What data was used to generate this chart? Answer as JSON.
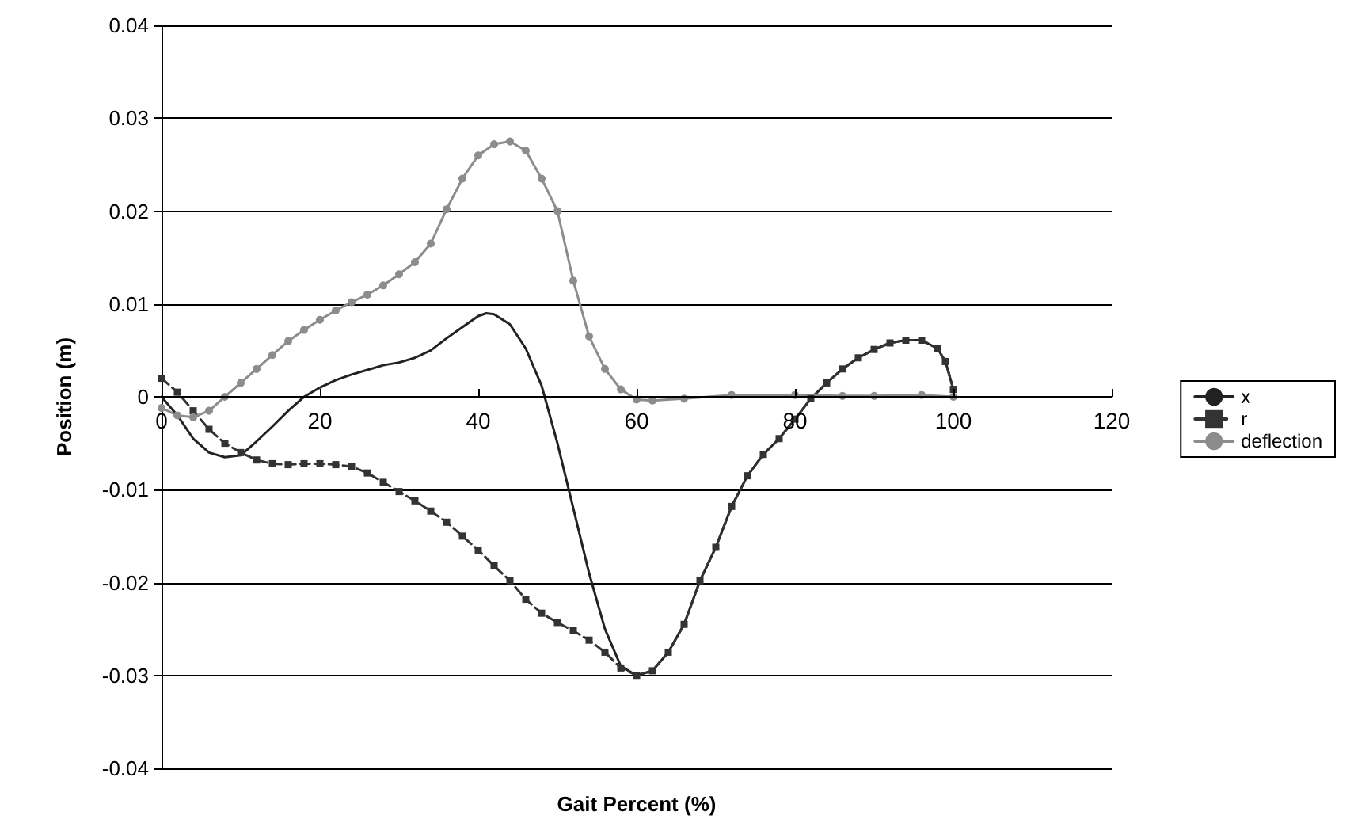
{
  "chart_data": {
    "type": "line",
    "xlabel": "Gait Percent (%)",
    "ylabel": "Position (m)",
    "xlim": [
      0,
      120
    ],
    "xticks": [
      0,
      20,
      40,
      60,
      80,
      100,
      120
    ],
    "ylim": [
      -0.04,
      0.04
    ],
    "yticks": [
      -0.04,
      -0.03,
      -0.02,
      -0.01,
      0,
      0.01,
      0.02,
      0.03,
      0.04
    ],
    "grid": "y",
    "legend": "right",
    "series": [
      {
        "name": "x",
        "color": "#222222",
        "marker": "none",
        "line_style": "solid",
        "x": [
          0,
          2,
          4,
          6,
          8,
          10,
          12,
          14,
          16,
          18,
          20,
          22,
          24,
          26,
          28,
          30,
          32,
          34,
          36,
          38,
          40,
          41,
          42,
          44,
          46,
          48,
          50,
          52,
          54,
          56,
          58,
          60,
          62,
          64,
          66,
          68,
          70,
          72,
          74,
          76,
          78,
          80,
          82,
          84,
          86,
          88,
          90,
          92,
          94,
          96,
          98,
          99,
          100
        ],
        "values": [
          0,
          -0.002,
          -0.0045,
          -0.006,
          -0.0065,
          -0.0063,
          -0.0048,
          -0.0032,
          -0.0015,
          0,
          0.001,
          0.0018,
          0.0024,
          0.0029,
          0.0034,
          0.0037,
          0.0042,
          0.005,
          0.0063,
          0.0075,
          0.0087,
          0.009,
          0.0089,
          0.0078,
          0.0052,
          0.0012,
          -0.005,
          -0.012,
          -0.019,
          -0.025,
          -0.029,
          -0.03,
          -0.0295,
          -0.0275,
          -0.0245,
          -0.0198,
          -0.0162,
          -0.0118,
          -0.0085,
          -0.0062,
          -0.0045,
          -0.0024,
          -0.0002,
          0.0015,
          0.003,
          0.0042,
          0.0051,
          0.0058,
          0.0061,
          0.0061,
          0.0052,
          0.0038,
          0.0008
        ]
      },
      {
        "name": "r",
        "color": "#333333",
        "marker": "square",
        "line_style": "dashed",
        "x": [
          0,
          2,
          4,
          6,
          8,
          10,
          12,
          14,
          16,
          18,
          20,
          22,
          24,
          26,
          28,
          30,
          32,
          34,
          36,
          38,
          40,
          42,
          44,
          46,
          48,
          50,
          52,
          54,
          56,
          58,
          60,
          62,
          64,
          66,
          68,
          70,
          72,
          74,
          76,
          78,
          80,
          82,
          84,
          86,
          88,
          90,
          92,
          94,
          96,
          98,
          99,
          100
        ],
        "values": [
          0.002,
          0.0005,
          -0.0015,
          -0.0035,
          -0.005,
          -0.006,
          -0.0068,
          -0.0072,
          -0.0073,
          -0.0072,
          -0.0072,
          -0.0073,
          -0.0075,
          -0.0082,
          -0.0092,
          -0.0102,
          -0.0112,
          -0.0123,
          -0.0135,
          -0.015,
          -0.0165,
          -0.0182,
          -0.0198,
          -0.0218,
          -0.0233,
          -0.0243,
          -0.0252,
          -0.0262,
          -0.0275,
          -0.0292,
          -0.03,
          -0.0295,
          -0.0275,
          -0.0245,
          -0.0198,
          -0.0162,
          -0.0118,
          -0.0085,
          -0.0062,
          -0.0045,
          -0.0024,
          -0.0002,
          0.0015,
          0.003,
          0.0042,
          0.0051,
          0.0058,
          0.0061,
          0.0061,
          0.0052,
          0.0038,
          0.0008
        ]
      },
      {
        "name": "deflection",
        "color": "#8c8c8c",
        "marker": "circle",
        "line_style": "solid",
        "x": [
          0,
          2,
          4,
          6,
          8,
          10,
          12,
          14,
          16,
          18,
          20,
          22,
          24,
          26,
          28,
          30,
          32,
          34,
          36,
          38,
          40,
          42,
          44,
          46,
          48,
          50,
          52,
          54,
          56,
          58,
          60,
          62,
          66,
          72,
          80,
          86,
          90,
          96,
          100
        ],
        "values": [
          -0.0012,
          -0.002,
          -0.0022,
          -0.0015,
          0,
          0.0015,
          0.003,
          0.0045,
          0.006,
          0.0072,
          0.0083,
          0.0093,
          0.0102,
          0.011,
          0.012,
          0.0132,
          0.0145,
          0.0165,
          0.0202,
          0.0235,
          0.026,
          0.0272,
          0.0275,
          0.0265,
          0.0235,
          0.02,
          0.0125,
          0.0065,
          0.003,
          0.0008,
          -0.0003,
          -0.0004,
          -0.0002,
          0.0002,
          0.0002,
          0.0001,
          0.0001,
          0.0002,
          0
        ]
      }
    ]
  }
}
